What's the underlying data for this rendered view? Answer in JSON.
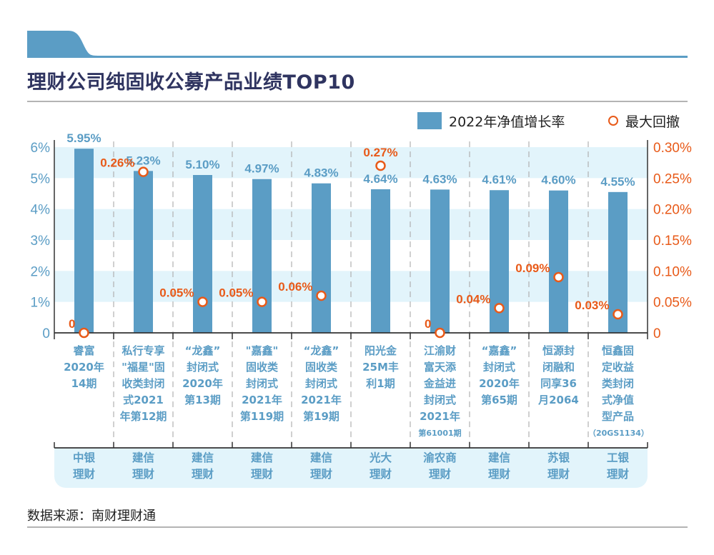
{
  "header": {
    "title": "理财公司纯固收公募产品业绩TOP10"
  },
  "legend": {
    "bar_label": "2022年净值增长率",
    "dot_label": "最大回撤"
  },
  "colors": {
    "bar": "#5b9dc5",
    "drawdown": "#e85a19",
    "band": "#e2f4fb",
    "axis": "#333333",
    "title": "#2f3460"
  },
  "chart_data": {
    "type": "bar",
    "title": "理财公司纯固收公募产品业绩TOP10",
    "xlabel": "",
    "ylabel": "",
    "legend_position": "top-right",
    "grid": false,
    "categories": [
      "睿富2020年14期",
      "私行专享\"福星\"固收类封闭式2021年第12期",
      "“龙鑫”封闭式2020年第13期",
      "\"嘉鑫\"固收类封闭式2021年第119期",
      "“龙鑫”固收类封闭式2021年第19期",
      "阳光金25M丰利1期",
      "江渝财富天添金益进封闭式2021年第61001期",
      "“嘉鑫”封闭式2020年第65期",
      "恒源封闭融和同享36月2064",
      "恒鑫固定收益类封闭式净值型产品（20GS1134）"
    ],
    "category_lines": [
      [
        "睿富",
        "2020年",
        "14期"
      ],
      [
        "私行专享",
        "\"福星\"固",
        "收类封闭",
        "式2021",
        "年第12期"
      ],
      [
        "“龙鑫”",
        "封闭式",
        "2020年",
        "第13期"
      ],
      [
        "\"嘉鑫\"",
        "固收类",
        "封闭式",
        "2021年",
        "第119期"
      ],
      [
        "“龙鑫”",
        "固收类",
        "封闭式",
        "2021年",
        "第19期"
      ],
      [
        "阳光金",
        "25M丰",
        "利1期"
      ],
      [
        "江渝财",
        "富天添",
        "金益进",
        "封闭式",
        "2021年",
        "第61001期"
      ],
      [
        "“嘉鑫”",
        "封闭式",
        "2020年",
        "第65期"
      ],
      [
        "恒源封",
        "闭融和",
        "同享36",
        "月2064"
      ],
      [
        "恒鑫固",
        "定收益",
        "类封闭",
        "式净值",
        "型产品",
        "（20GS1134）"
      ]
    ],
    "institutions": [
      "中银\n理财",
      "建信\n理财",
      "建信\n理财",
      "建信\n理财",
      "建信\n理财",
      "光大\n理财",
      "渝农商\n理财",
      "建信\n理财",
      "苏银\n理财",
      "工银\n理财"
    ],
    "series": [
      {
        "name": "2022年净值增长率",
        "axis": "left",
        "type": "bar",
        "values": [
          5.95,
          5.23,
          5.1,
          4.97,
          4.83,
          4.64,
          4.63,
          4.61,
          4.6,
          4.55
        ],
        "labels": [
          "5.95%",
          "5.23%",
          "5.10%",
          "4.97%",
          "4.83%",
          "4.64%",
          "4.63%",
          "4.61%",
          "4.60%",
          "4.55%"
        ]
      },
      {
        "name": "最大回撤",
        "axis": "right",
        "type": "scatter",
        "values": [
          0,
          0.26,
          0.05,
          0.05,
          0.06,
          0.27,
          0,
          0.04,
          0.09,
          0.03
        ],
        "labels": [
          "0",
          "0.26%",
          "0.05%",
          "0.05%",
          "0.06%",
          "0.27%",
          "0",
          "0.04%",
          "0.09%",
          "0.03%"
        ],
        "label_side": [
          "left",
          "left",
          "left",
          "left",
          "left",
          "above",
          "left",
          "left",
          "left",
          "left"
        ]
      }
    ],
    "y_left": {
      "range": [
        0,
        6
      ],
      "ticks": [
        "0",
        "1%",
        "2%",
        "3%",
        "4%",
        "5%",
        "6%"
      ]
    },
    "y_right": {
      "range": [
        0,
        0.3
      ],
      "ticks": [
        "0",
        "0.05%",
        "0.10%",
        "0.15%",
        "0.20%",
        "0.25%",
        "0.30%"
      ]
    }
  },
  "footer": {
    "source": "数据来源：南财理财通"
  }
}
